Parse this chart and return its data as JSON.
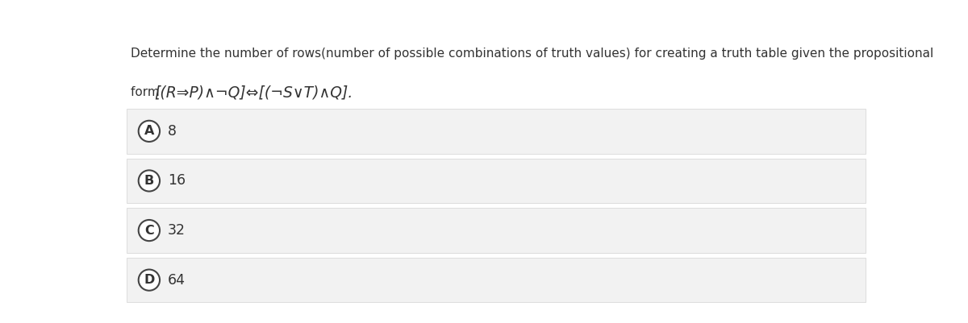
{
  "bg_color": "#ffffff",
  "question_line1": "Determine the number of rows(number of possible combinations of truth values) for creating a truth table given the propositional",
  "question_line2_prefix": "form ",
  "question_formula": "[(R⇒P)∧¬Q]⇔[(¬S∨T)∧Q].",
  "options": [
    {
      "label": "A",
      "value": "8"
    },
    {
      "label": "B",
      "value": "16"
    },
    {
      "label": "C",
      "value": "32"
    },
    {
      "label": "D",
      "value": "64"
    }
  ],
  "option_bg": "#f2f2f2",
  "option_border": "#d8d8d8",
  "circle_edgecolor": "#444444",
  "text_color": "#333333",
  "font_size_q1": 11.0,
  "font_size_formula": 13.5,
  "font_size_form": 11.0,
  "font_size_option_value": 12.5,
  "font_size_label": 11.5,
  "fig_width": 12.0,
  "fig_height": 4.01
}
